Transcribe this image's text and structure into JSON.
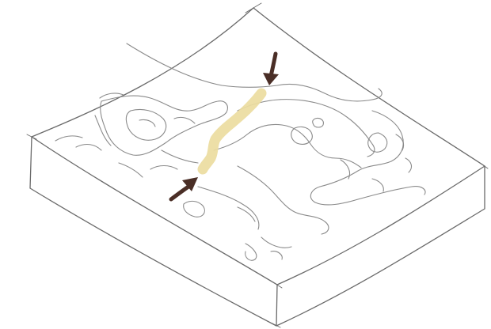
{
  "diagram": {
    "colors": {
      "paper": "#ffffff",
      "pencil": "#6a6a6a",
      "pencil_light": "#8c8c8c",
      "highlight": "#ecdca0",
      "arrow": "#4a2e26"
    },
    "elements": [
      "terrain-block",
      "coastline-contours",
      "highlighted-crossing",
      "arrow-north",
      "arrow-south"
    ]
  }
}
